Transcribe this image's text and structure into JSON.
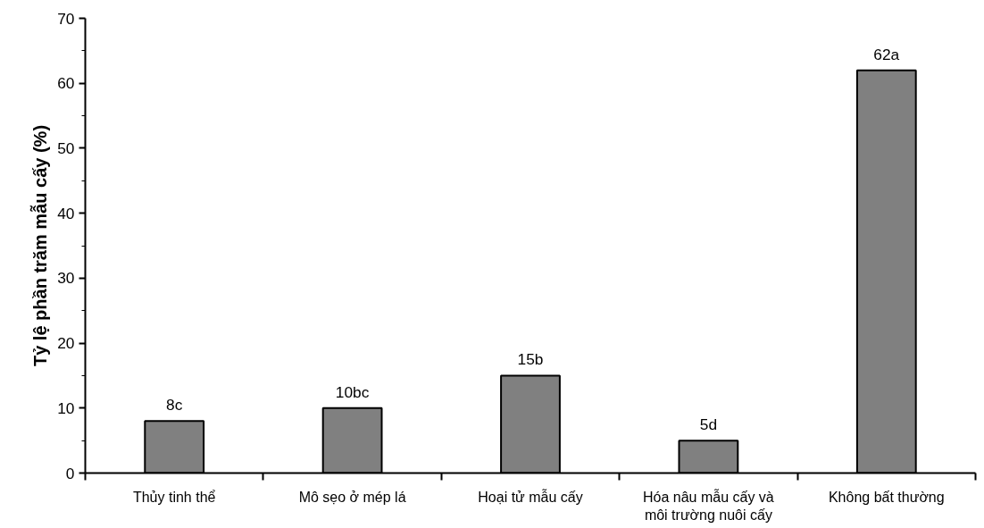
{
  "chart_data": {
    "type": "bar",
    "ylabel": "Tỷ lệ phần trăm mẫu cấy (%)",
    "categories": [
      "Thủy tinh thể",
      "Mô sẹo ở mép lá",
      "Hoại tử mẫu cấy",
      "Hóa nâu mẫu cấy và môi trường nuôi cấy",
      "Không bất thường"
    ],
    "values": [
      8,
      10,
      15,
      5,
      62
    ],
    "value_labels": [
      "8c",
      "10bc",
      "15b",
      "5d",
      "62a"
    ],
    "color": "#808080",
    "ylim": [
      0,
      70
    ],
    "yticks": [
      0,
      {
        "value": 5,
        "label": null
      },
      10,
      {
        "value": 15,
        "label": null
      },
      20,
      {
        "value": 25,
        "label": null
      },
      30,
      {
        "value": 35,
        "label": null
      },
      40,
      {
        "value": 45,
        "label": null
      },
      50,
      {
        "value": 55,
        "label": null
      },
      60,
      {
        "value": 65,
        "label": null
      },
      70
    ],
    "grid": false
  }
}
